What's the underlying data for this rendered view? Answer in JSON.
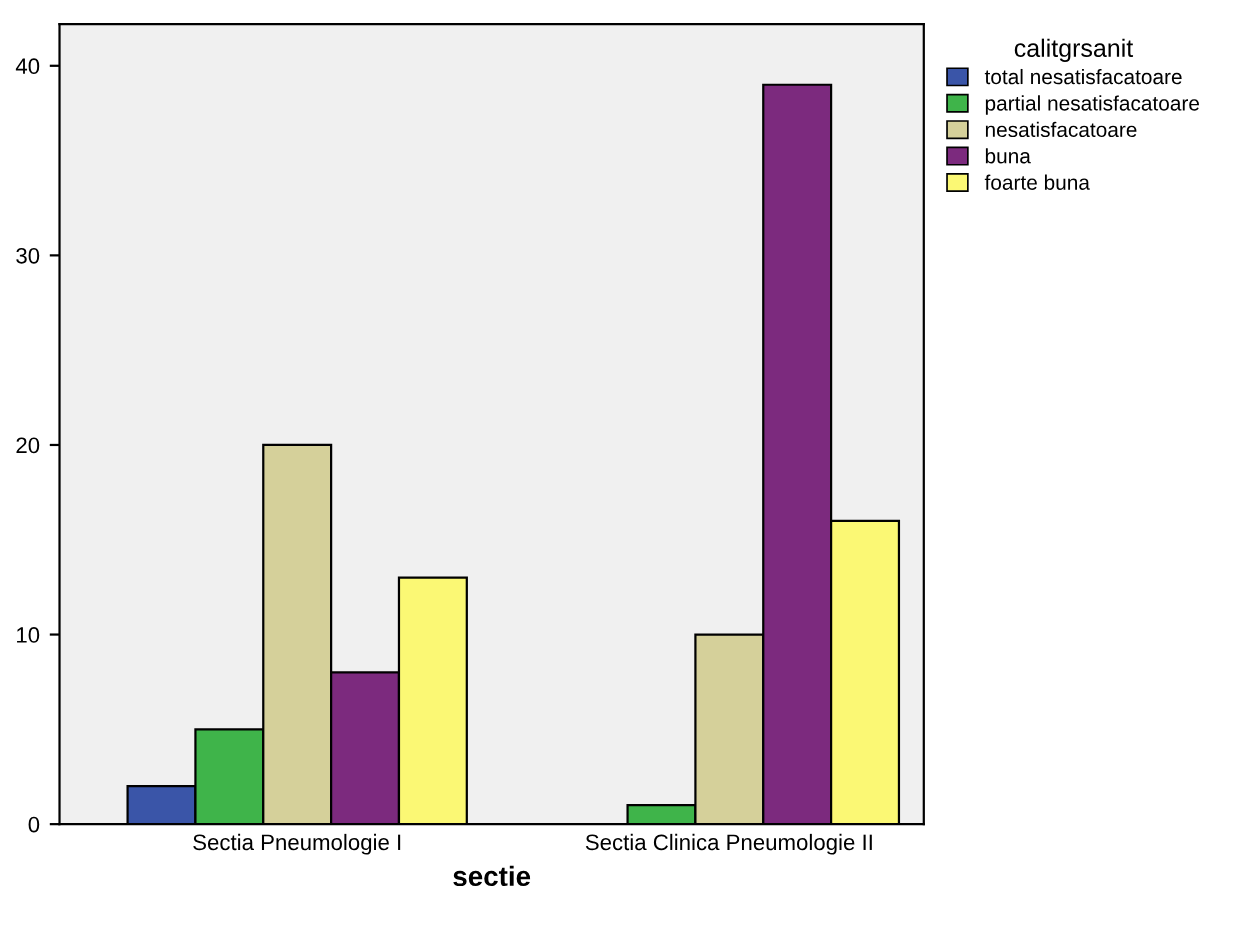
{
  "chart_data": {
    "type": "bar",
    "xlabel": "sectie",
    "legend_title": "calitgrsanit",
    "categories": [
      "Sectia Pneumologie I",
      "Sectia Clinica Pneumologie II"
    ],
    "series": [
      {
        "name": "total nesatisfacatoare",
        "color": "#3a55a8",
        "values": [
          2,
          null
        ]
      },
      {
        "name": "partial nesatisfacatoare",
        "color": "#3fb44a",
        "values": [
          5,
          1
        ]
      },
      {
        "name": "nesatisfacatoare",
        "color": "#d5d09a",
        "values": [
          20,
          10
        ]
      },
      {
        "name": "buna",
        "color": "#7c2a7e",
        "values": [
          8,
          39
        ]
      },
      {
        "name": "foarte buna",
        "color": "#fbf874",
        "values": [
          13,
          16
        ]
      }
    ],
    "ylim": [
      0,
      42.2
    ],
    "yticks": [
      0,
      10,
      20,
      30,
      40
    ],
    "grid": false,
    "legend": "top right"
  }
}
